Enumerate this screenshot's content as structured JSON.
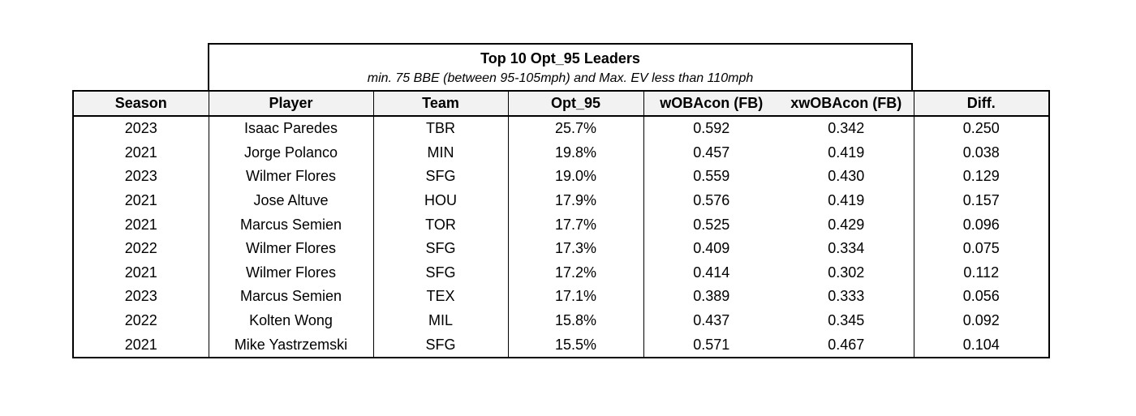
{
  "chart_data": {
    "type": "table",
    "title": "Top 10 Opt_95 Leaders",
    "subtitle": "min. 75 BBE (between 95-105mph) and Max. EV less than 110mph",
    "columns": [
      "Season",
      "Player",
      "Team",
      "Opt_95",
      "wOBAcon (FB)",
      "xwOBAcon (FB)",
      "Diff."
    ],
    "rows": [
      [
        "2023",
        "Isaac Paredes",
        "TBR",
        "25.7%",
        "0.592",
        "0.342",
        "0.250"
      ],
      [
        "2021",
        "Jorge Polanco",
        "MIN",
        "19.8%",
        "0.457",
        "0.419",
        "0.038"
      ],
      [
        "2023",
        "Wilmer Flores",
        "SFG",
        "19.0%",
        "0.559",
        "0.430",
        "0.129"
      ],
      [
        "2021",
        "Jose Altuve",
        "HOU",
        "17.9%",
        "0.576",
        "0.419",
        "0.157"
      ],
      [
        "2021",
        "Marcus Semien",
        "TOR",
        "17.7%",
        "0.525",
        "0.429",
        "0.096"
      ],
      [
        "2022",
        "Wilmer Flores",
        "SFG",
        "17.3%",
        "0.409",
        "0.334",
        "0.075"
      ],
      [
        "2021",
        "Wilmer Flores",
        "SFG",
        "17.2%",
        "0.414",
        "0.302",
        "0.112"
      ],
      [
        "2023",
        "Marcus Semien",
        "TEX",
        "17.1%",
        "0.389",
        "0.333",
        "0.056"
      ],
      [
        "2022",
        "Kolten Wong",
        "MIL",
        "15.8%",
        "0.437",
        "0.345",
        "0.092"
      ],
      [
        "2021",
        "Mike Yastrzemski",
        "SFG",
        "15.5%",
        "0.571",
        "0.467",
        "0.104"
      ]
    ]
  }
}
